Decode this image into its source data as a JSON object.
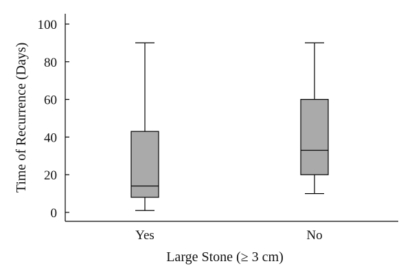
{
  "chart_data": {
    "type": "box",
    "xlabel": "Large Stone (≥ 3 cm)",
    "ylabel": "Time of Recurrence (Days)",
    "ylim": [
      -5,
      105
    ],
    "yticks": [
      0,
      20,
      40,
      60,
      80,
      100
    ],
    "grid": false,
    "box_color": "#aaaaaa",
    "categories": [
      "Yes",
      "No"
    ],
    "boxes": [
      {
        "category": "Yes",
        "min": 1,
        "q1": 8,
        "median": 14,
        "q3": 43,
        "max": 90
      },
      {
        "category": "No",
        "min": 10,
        "q1": 20,
        "median": 33,
        "q3": 60,
        "max": 90
      }
    ]
  }
}
